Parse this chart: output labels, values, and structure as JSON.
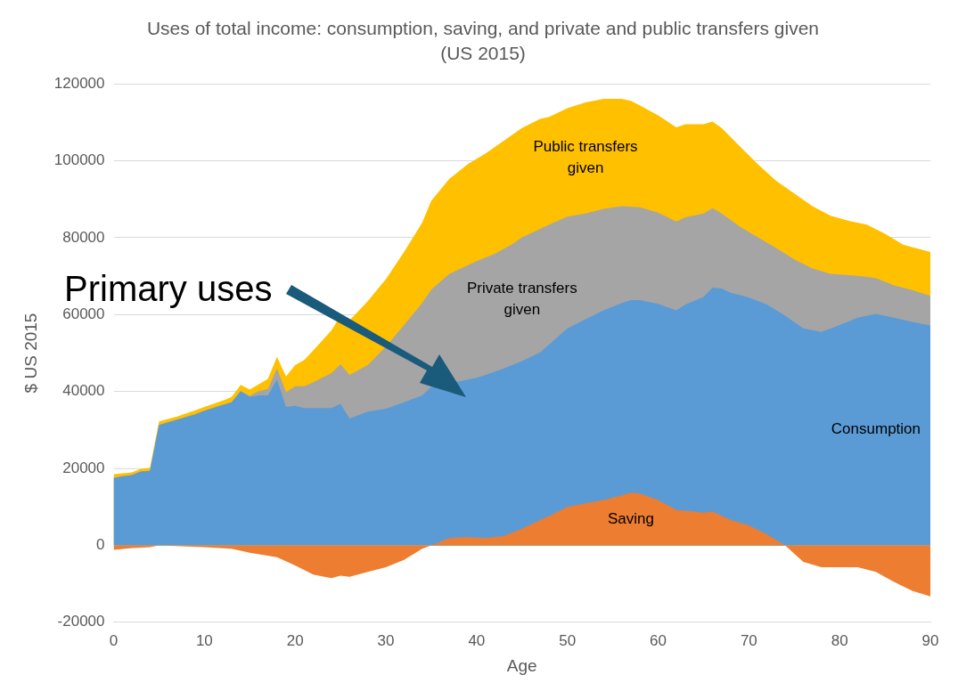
{
  "chart_data": {
    "type": "area",
    "title": "Uses of total income: consumption, saving, and private and public transfers given (US 2015)",
    "xlabel": "Age",
    "ylabel": "$ US 2015",
    "xlim": [
      0,
      90
    ],
    "xticks": [
      0,
      10,
      20,
      30,
      40,
      50,
      60,
      70,
      80,
      90
    ],
    "ylim": [
      -20000,
      120000
    ],
    "yticks": [
      -20000,
      0,
      20000,
      40000,
      60000,
      80000,
      100000,
      120000
    ],
    "grid": "y",
    "legend": false,
    "annotations": [
      "Primary uses"
    ],
    "series": [
      {
        "name": "Public transfers given",
        "color": "#ffc000",
        "x": [
          0,
          2,
          3,
          4,
          5,
          7,
          9,
          10,
          12,
          13,
          14,
          15,
          17,
          18,
          19,
          20,
          21,
          22,
          24,
          25,
          26,
          28,
          30,
          32,
          34,
          35,
          37,
          39,
          41,
          43,
          45,
          47,
          48,
          50,
          52,
          54,
          56,
          57,
          58,
          60,
          62,
          63,
          65,
          66,
          67,
          69,
          71,
          73,
          75,
          77,
          79,
          81,
          83,
          85,
          87,
          90
        ],
        "values": [
          18500,
          19000,
          19900,
          20200,
          32200,
          33500,
          35100,
          36000,
          37600,
          38600,
          41700,
          40500,
          43300,
          49000,
          43900,
          46900,
          48200,
          50700,
          55900,
          59700,
          58500,
          63500,
          69200,
          76300,
          83900,
          89600,
          95300,
          99100,
          101900,
          105200,
          108500,
          110900,
          111400,
          113700,
          115200,
          116100,
          116100,
          115600,
          114400,
          111800,
          108700,
          109500,
          109500,
          110200,
          108500,
          103800,
          99100,
          94800,
          91500,
          88200,
          85700,
          84400,
          83400,
          81000,
          78200,
          76300
        ]
      },
      {
        "name": "Private transfers given",
        "color": "#a5a5a5",
        "x": [
          0,
          2,
          3,
          4,
          5,
          7,
          9,
          10,
          12,
          13,
          14,
          15,
          16,
          17,
          18,
          19,
          20,
          21,
          22,
          24,
          25,
          26,
          28,
          30,
          32,
          34,
          35,
          37,
          40,
          42,
          44,
          45,
          48,
          50,
          52,
          54,
          56,
          58,
          60,
          62,
          63,
          65,
          66,
          67,
          69,
          71,
          73,
          75,
          77,
          79,
          82,
          84,
          86,
          88,
          90
        ],
        "values": [
          17500,
          18300,
          19200,
          19400,
          31300,
          32700,
          34100,
          35000,
          36500,
          37200,
          40100,
          38900,
          40100,
          40600,
          46000,
          39800,
          41400,
          41400,
          42400,
          44800,
          47100,
          44300,
          46900,
          51700,
          57300,
          63000,
          66500,
          70600,
          73900,
          75800,
          78400,
          80100,
          83400,
          85500,
          86300,
          87500,
          88200,
          87900,
          86500,
          84200,
          85300,
          86300,
          87700,
          86300,
          82900,
          80100,
          77300,
          74400,
          72000,
          70600,
          70100,
          69500,
          67600,
          66400,
          64900
        ]
      },
      {
        "name": "Consumption",
        "color": "#5b9bd5",
        "x": [
          0,
          1,
          2,
          3,
          4,
          5,
          7,
          9,
          10,
          12,
          13,
          14,
          15,
          16,
          17,
          18,
          19,
          20,
          21,
          24,
          25,
          26,
          28,
          30,
          32,
          34,
          35,
          37,
          38,
          40,
          41,
          43,
          45,
          47,
          50,
          52,
          54,
          56,
          57,
          58,
          60,
          62,
          63,
          65,
          66,
          67,
          68,
          70,
          72,
          74,
          76,
          78,
          80,
          82,
          84,
          86,
          88,
          90
        ],
        "values": [
          17500,
          18000,
          18300,
          19200,
          19400,
          31300,
          32700,
          34100,
          35000,
          36500,
          37200,
          40100,
          38600,
          39000,
          39000,
          43100,
          36000,
          36300,
          35700,
          35700,
          36800,
          33000,
          34800,
          35500,
          37200,
          39000,
          41200,
          42600,
          42600,
          43600,
          44300,
          46000,
          47900,
          50200,
          56400,
          58800,
          61100,
          63000,
          63800,
          63800,
          62800,
          61100,
          62600,
          64600,
          67000,
          66800,
          65700,
          64500,
          62600,
          59700,
          56400,
          55500,
          57300,
          59200,
          60200,
          59200,
          58100,
          57200
        ]
      },
      {
        "name": "Saving",
        "color": "#ed7d31",
        "x": [
          0,
          2,
          4,
          5,
          10,
          13,
          15,
          18,
          20,
          22,
          24,
          25,
          26,
          28,
          30,
          32,
          34,
          35,
          37,
          39,
          41,
          43,
          45,
          47,
          48,
          50,
          52,
          54,
          56,
          57,
          58,
          60,
          62,
          64,
          65,
          66,
          68,
          70,
          72,
          74,
          76,
          78,
          80,
          82,
          84,
          86,
          88,
          90
        ],
        "values": [
          -1200,
          -700,
          -500,
          0,
          -500,
          -900,
          -1900,
          -3100,
          -5200,
          -7600,
          -8500,
          -7900,
          -8200,
          -6900,
          -5700,
          -3800,
          -900,
          0,
          1900,
          2100,
          1900,
          2400,
          4300,
          6600,
          7600,
          10000,
          10900,
          11800,
          13000,
          13700,
          13500,
          11800,
          9200,
          8800,
          8500,
          8800,
          6600,
          5200,
          2800,
          0,
          -4300,
          -5700,
          -5700,
          -5700,
          -6900,
          -9500,
          -11800,
          -13300
        ]
      }
    ]
  }
}
